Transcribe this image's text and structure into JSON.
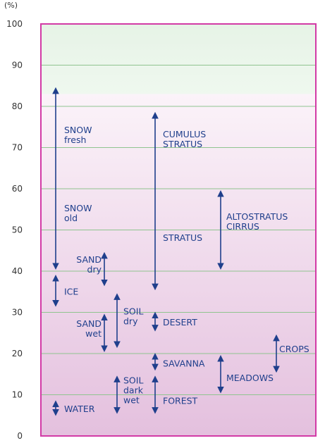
{
  "chart_data": {
    "type": "range",
    "unit_label": "(%)",
    "ylim": [
      0,
      100
    ],
    "yticks": [
      "0",
      "10",
      "20",
      "30",
      "40",
      "50",
      "60",
      "70",
      "80",
      "90",
      "100"
    ],
    "grid": true,
    "colors": {
      "frame": "#d23aa6",
      "grid": "#8fc48f",
      "arrow": "#1f3f8c",
      "label": "#1f3f8c",
      "top_band": "#e9f4e9",
      "bottom_band_start": "#f8eef6",
      "bottom_band_end": "#e7c6e1"
    },
    "ranges": [
      {
        "column": 0,
        "min": 41,
        "max": 84,
        "labels": [
          "SNOW",
          "fresh"
        ],
        "label_y": 73
      },
      {
        "column": 0,
        "min": 41,
        "max": 84,
        "labels": [
          "SNOW",
          "old"
        ],
        "label_y": 54,
        "draw_arrow": false
      },
      {
        "column": 0,
        "min": 32,
        "max": 38.5,
        "labels": [
          "ICE"
        ],
        "label_y": 35
      },
      {
        "column": 0,
        "min": 5.5,
        "max": 8,
        "labels": [
          "WATER"
        ],
        "label_y": 6.5
      },
      {
        "column": 1,
        "min": 37,
        "max": 44,
        "labels": [
          "SAND",
          "dry"
        ],
        "label_y": 41.5,
        "label_side": "left"
      },
      {
        "column": 1,
        "min": 21,
        "max": 29,
        "labels": [
          "SAND",
          "wet"
        ],
        "label_y": 26,
        "label_side": "left"
      },
      {
        "column": 2,
        "min": 22,
        "max": 34,
        "labels": [
          "SOIL",
          "dry"
        ],
        "label_y": 29
      },
      {
        "column": 2,
        "min": 6,
        "max": 14,
        "labels": [
          "SOIL",
          "dark",
          "wet"
        ],
        "label_y": 11
      },
      {
        "column": 3,
        "min": 36,
        "max": 78,
        "labels": [
          "CUMULUS",
          "STRATUS"
        ],
        "label_y": 72
      },
      {
        "column": 3,
        "min": 36,
        "max": 78,
        "labels": [
          "STRATUS"
        ],
        "label_y": 48,
        "draw_arrow": false
      },
      {
        "column": 3,
        "min": 26,
        "max": 29.5,
        "labels": [
          "DESERT"
        ],
        "label_y": 27.5
      },
      {
        "column": 3,
        "min": 16.5,
        "max": 19.5,
        "labels": [
          "SAVANNA"
        ],
        "label_y": 17.5
      },
      {
        "column": 3,
        "min": 6,
        "max": 14,
        "labels": [
          "FOREST"
        ],
        "label_y": 8.5
      },
      {
        "column": 4,
        "min": 41,
        "max": 59,
        "labels": [
          "ALTOSTRATUS",
          "CIRRUS"
        ],
        "label_y": 52
      },
      {
        "column": 4,
        "min": 11,
        "max": 19,
        "labels": [
          "MEADOWS"
        ],
        "label_y": 14
      },
      {
        "column": 5,
        "min": 16,
        "max": 24,
        "labels": [
          "CROPS"
        ],
        "label_y": 21
      }
    ]
  }
}
